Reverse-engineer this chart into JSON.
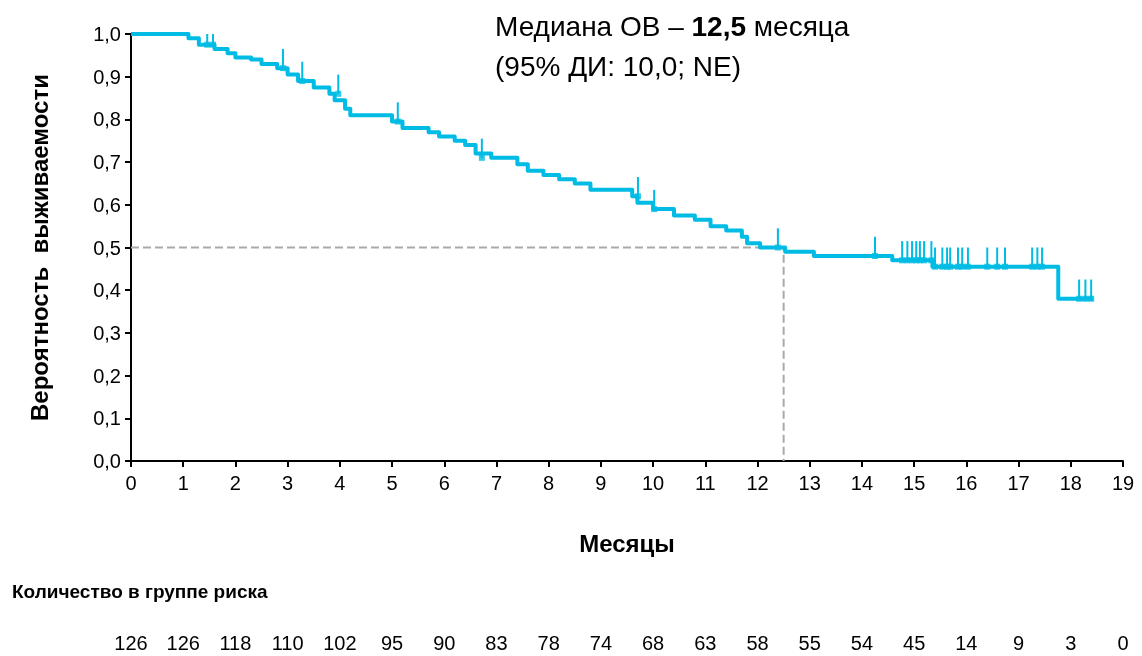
{
  "chart_data": {
    "type": "step",
    "xlabel": "Месяцы",
    "ylabel": "Вероятность  выживаемости",
    "annotations": [
      "Медиана ОВ – 12,5 месяца",
      "(95% ДИ: 10,0; NE)",
      "Количество в группе риска",
      "126",
      "126",
      "118",
      "110",
      "102",
      "95",
      "90",
      "83",
      "78",
      "74",
      "68",
      "63",
      "58",
      "55",
      "54",
      "45",
      "14",
      "9",
      "3",
      "0"
    ],
    "xlim": [
      0,
      19
    ],
    "xticks": [
      0,
      1,
      2,
      3,
      4,
      5,
      6,
      7,
      8,
      9,
      10,
      11,
      12,
      13,
      14,
      15,
      16,
      17,
      18,
      19
    ],
    "ylim": [
      0,
      1
    ],
    "yticks": [
      {
        "value": 0,
        "label": "0,0"
      },
      {
        "value": 0.1,
        "label": "0,1"
      },
      {
        "value": 0.2,
        "label": "0,2"
      },
      {
        "value": 0.3,
        "label": "0,3"
      },
      {
        "value": 0.4,
        "label": "0,4"
      },
      {
        "value": 0.5,
        "label": "0,5"
      },
      {
        "value": 0.6,
        "label": "0,6"
      },
      {
        "value": 0.7,
        "label": "0,7"
      },
      {
        "value": 0.8,
        "label": "0,8"
      },
      {
        "value": 0.9,
        "label": "0,9"
      },
      {
        "value": 1,
        "label": "1,0"
      }
    ],
    "grid": false,
    "series": [
      {
        "color": "#00bce4",
        "marker": "none",
        "line_style": "solid",
        "x": [
          0,
          1.1,
          1.3,
          1.6,
          1.85,
          2.0,
          2.3,
          2.5,
          2.8,
          3.0,
          3.2,
          3.5,
          3.8,
          3.9,
          4.1,
          4.2,
          5.0,
          5.2,
          5.7,
          5.9,
          6.2,
          6.4,
          6.6,
          6.9,
          7.4,
          7.6,
          7.9,
          8.2,
          8.5,
          8.8,
          9.6,
          9.7,
          10.0,
          10.4,
          10.8,
          11.1,
          11.4,
          11.7,
          11.8,
          12.05,
          12.53,
          13.08,
          14.58,
          15.35,
          17.76,
          18.43
        ],
        "values": [
          1.0,
          0.99,
          0.975,
          0.965,
          0.955,
          0.945,
          0.94,
          0.93,
          0.92,
          0.905,
          0.89,
          0.875,
          0.86,
          0.845,
          0.825,
          0.81,
          0.795,
          0.78,
          0.77,
          0.76,
          0.75,
          0.74,
          0.72,
          0.71,
          0.695,
          0.68,
          0.67,
          0.66,
          0.65,
          0.635,
          0.62,
          0.605,
          0.59,
          0.575,
          0.565,
          0.55,
          0.54,
          0.525,
          0.51,
          0.5,
          0.49,
          0.48,
          0.47,
          0.455,
          0.38,
          0.38
        ]
      },
      {
        "type": "scatter",
        "color": "#00bce4",
        "marker": "square",
        "errors": [
          [
            0.975,
            1.0
          ],
          [
            0.975,
            1.0
          ],
          [
            0.92,
            0.965
          ],
          [
            0.89,
            0.935
          ],
          [
            0.86,
            0.905
          ],
          [
            0.795,
            0.84
          ],
          [
            0.71,
            0.755
          ],
          [
            0.62,
            0.665
          ],
          [
            0.59,
            0.635
          ],
          [
            0.5,
            0.545
          ],
          [
            0.48,
            0.525
          ],
          [
            0.47,
            0.515
          ],
          [
            0.47,
            0.515
          ],
          [
            0.47,
            0.515
          ],
          [
            0.47,
            0.515
          ],
          [
            0.47,
            0.515
          ],
          [
            0.47,
            0.515
          ],
          [
            0.47,
            0.515
          ],
          [
            0.455,
            0.5
          ],
          [
            0.455,
            0.5
          ],
          [
            0.455,
            0.5
          ],
          [
            0.455,
            0.5
          ],
          [
            0.455,
            0.5
          ],
          [
            0.455,
            0.5
          ],
          [
            0.455,
            0.5
          ],
          [
            0.455,
            0.5
          ],
          [
            0.455,
            0.5
          ],
          [
            0.455,
            0.5
          ],
          [
            0.455,
            0.5
          ],
          [
            0.455,
            0.5
          ],
          [
            0.455,
            0.5
          ],
          [
            0.38,
            0.425
          ],
          [
            0.38,
            0.425
          ],
          [
            0.38,
            0.425
          ]
        ],
        "x": [
          1.46,
          1.57,
          2.91,
          3.28,
          3.97,
          5.11,
          6.72,
          9.71,
          10.02,
          12.39,
          14.25,
          14.77,
          14.87,
          14.96,
          15.04,
          15.11,
          15.19,
          15.33,
          15.4,
          15.54,
          15.63,
          15.69,
          15.84,
          15.92,
          16.03,
          16.4,
          16.59,
          16.74,
          17.26,
          17.36,
          17.45,
          18.16,
          18.28,
          18.39
        ],
        "values": [
          0.975,
          0.975,
          0.92,
          0.89,
          0.86,
          0.795,
          0.71,
          0.62,
          0.59,
          0.5,
          0.48,
          0.47,
          0.47,
          0.47,
          0.47,
          0.47,
          0.47,
          0.47,
          0.455,
          0.455,
          0.455,
          0.455,
          0.455,
          0.455,
          0.455,
          0.455,
          0.455,
          0.455,
          0.455,
          0.455,
          0.455,
          0.38,
          0.38,
          0.38
        ]
      },
      {
        "type": "line",
        "color": "#aaaaaa",
        "marker": "none",
        "line_style": "dashed",
        "x": [
          0,
          12.5,
          12.5
        ],
        "values": [
          0.5,
          0.5,
          0
        ]
      }
    ]
  }
}
